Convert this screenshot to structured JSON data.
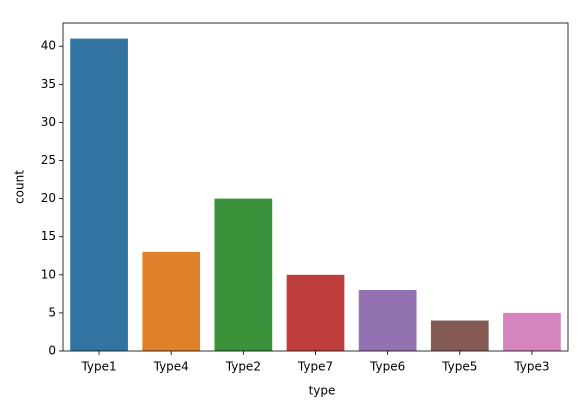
{
  "chart_data": {
    "type": "bar",
    "categories": [
      "Type1",
      "Type4",
      "Type2",
      "Type7",
      "Type6",
      "Type5",
      "Type3"
    ],
    "values": [
      41,
      13,
      20,
      10,
      8,
      4,
      5
    ],
    "colors": [
      "#3274a1",
      "#e1812c",
      "#3a923a",
      "#c03d3e",
      "#9372b2",
      "#845b53",
      "#d684bd"
    ],
    "x_label": "type",
    "y_label": "count",
    "ylim": [
      0,
      43.05
    ],
    "yticks": [
      0,
      5,
      10,
      15,
      20,
      25,
      30,
      35,
      40
    ],
    "grid": false
  }
}
